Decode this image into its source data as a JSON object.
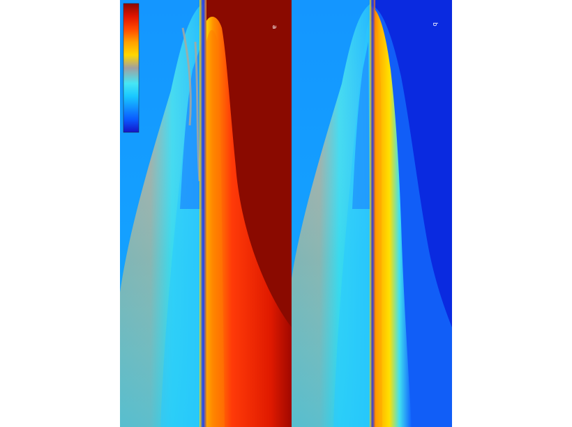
{
  "figure": {
    "panels": [
      {
        "label": "a"
      },
      {
        "label": "b"
      }
    ],
    "colorbar": {
      "colors": [
        "#1414c8",
        "#0a5aff",
        "#19c8ff",
        "#46e6f5",
        "#a0a0a0",
        "#ffd700",
        "#ffa000",
        "#ff4a00",
        "#e01400",
        "#8c0800"
      ]
    },
    "colors": {
      "background_left": "#14a0ff",
      "background_right_b": "#0a28e6",
      "background_right_a": "#8c0a00",
      "plume_grey": "#a0a5a0",
      "plume_cyan": "#2ee0f5"
    }
  }
}
